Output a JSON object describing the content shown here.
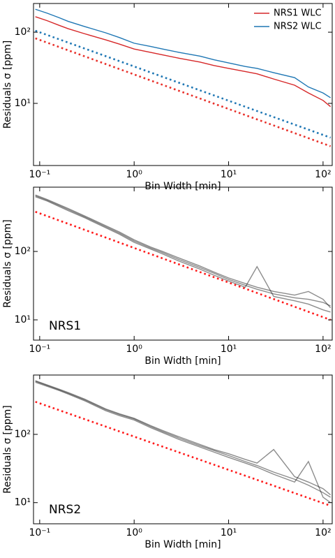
{
  "chart_data": [
    {
      "type": "line",
      "x_label": "Bin Width [min]",
      "y_label": "Residuals σ [ppm]",
      "log_x": true,
      "log_y": true,
      "xlim": [
        0.086,
        125
      ],
      "ylim": [
        1.34,
        253
      ],
      "xticks": [
        {
          "value": 0.1,
          "label": "10⁻¹"
        },
        {
          "value": 1,
          "label": "10⁰"
        },
        {
          "value": 10,
          "label": "10¹"
        },
        {
          "value": 100,
          "label": "10²"
        }
      ],
      "yticks": [
        {
          "value": 10,
          "label": "10¹"
        },
        {
          "value": 100,
          "label": "10²"
        }
      ],
      "legend": "upper-right",
      "x": [
        0.09,
        0.12,
        0.16,
        0.2,
        0.3,
        0.5,
        0.7,
        1,
        1.5,
        2,
        3,
        5,
        7,
        10,
        15,
        20,
        30,
        50,
        70,
        100,
        120
      ],
      "series": [
        {
          "name": "NRS1 WLC",
          "color": "#d62728",
          "values": [
            165,
            145,
            125,
            112,
            95,
            78,
            68,
            58,
            52,
            48,
            43,
            38,
            34,
            31,
            28,
            26,
            22,
            18,
            14,
            11,
            9
          ]
        },
        {
          "name": "NRS2 WLC",
          "color": "#1f77b4",
          "values": [
            210,
            185,
            160,
            142,
            120,
            98,
            84,
            70,
            63,
            58,
            52,
            46,
            41,
            37,
            33,
            31,
            27,
            23,
            17,
            14,
            12
          ]
        },
        {
          "color": "#1f77b4",
          "style": "dotted",
          "x": [
            0.09,
            120
          ],
          "values": [
            105,
            3.3
          ]
        },
        {
          "color": "#e8302a",
          "style": "dotted",
          "x": [
            0.09,
            120
          ],
          "values": [
            82,
            2.5
          ]
        }
      ]
    },
    {
      "type": "line",
      "x_label": "Bin Width [min]",
      "y_label": "Residuals σ [ppm]",
      "panel_label": "NRS1",
      "log_x": true,
      "log_y": true,
      "xlim": [
        0.086,
        125
      ],
      "ylim": [
        5.06,
        870
      ],
      "xticks": [
        {
          "value": 0.1,
          "label": "10⁻¹"
        },
        {
          "value": 1,
          "label": "10⁰"
        },
        {
          "value": 10,
          "label": "10¹"
        },
        {
          "value": 100,
          "label": "10²"
        }
      ],
      "yticks": [
        {
          "value": 10,
          "label": "10¹"
        },
        {
          "value": 100,
          "label": "10²"
        }
      ],
      "x": [
        0.09,
        0.12,
        0.16,
        0.2,
        0.3,
        0.5,
        0.7,
        1,
        1.5,
        2,
        3,
        5,
        7,
        10,
        15,
        20,
        30,
        50,
        70,
        100,
        120
      ],
      "series": [
        {
          "color": "#000000",
          "opacity": 0.45,
          "values": [
            650,
            560,
            470,
            410,
            320,
            230,
            185,
            142,
            112,
            96,
            76,
            58,
            48,
            39,
            32,
            28,
            24,
            21,
            20,
            18,
            16
          ]
        },
        {
          "color": "#000000",
          "opacity": 0.45,
          "values": [
            630,
            545,
            455,
            395,
            310,
            222,
            178,
            136,
            108,
            92,
            72,
            55,
            45,
            37,
            30,
            60,
            22,
            19,
            17,
            14,
            13
          ]
        },
        {
          "color": "#000000",
          "opacity": 0.45,
          "values": [
            670,
            575,
            485,
            425,
            330,
            238,
            192,
            148,
            116,
            100,
            80,
            61,
            50,
            41,
            34,
            30,
            26,
            23,
            26,
            20,
            15
          ]
        },
        {
          "color": "#ff1a1a",
          "style": "dotted",
          "x": [
            0.09,
            120
          ],
          "values": [
            380,
            10
          ]
        }
      ]
    },
    {
      "type": "line",
      "x_label": "Bin Width [min]",
      "y_label": "Residuals σ [ppm]",
      "panel_label": "NRS2",
      "log_x": true,
      "log_y": true,
      "xlim": [
        0.086,
        125
      ],
      "ylim": [
        4.9,
        740
      ],
      "xticks": [
        {
          "value": 0.1,
          "label": "10⁻¹"
        },
        {
          "value": 1,
          "label": "10⁰"
        },
        {
          "value": 10,
          "label": "10¹"
        },
        {
          "value": 100,
          "label": "10²"
        }
      ],
      "yticks": [
        {
          "value": 10,
          "label": "10¹"
        },
        {
          "value": 100,
          "label": "10²"
        }
      ],
      "x": [
        0.09,
        0.12,
        0.16,
        0.2,
        0.3,
        0.5,
        0.7,
        1,
        1.5,
        2,
        3,
        5,
        7,
        10,
        15,
        20,
        30,
        50,
        70,
        100,
        120
      ],
      "series": [
        {
          "color": "#000000",
          "opacity": 0.45,
          "values": [
            600,
            520,
            450,
            400,
            320,
            230,
            195,
            168,
            130,
            110,
            88,
            68,
            58,
            49,
            40,
            35,
            28,
            22,
            18,
            14,
            12
          ]
        },
        {
          "color": "#000000",
          "opacity": 0.45,
          "values": [
            580,
            505,
            440,
            390,
            310,
            222,
            188,
            162,
            125,
            106,
            84,
            65,
            55,
            46,
            38,
            33,
            26,
            20,
            40,
            12,
            10
          ]
        },
        {
          "color": "#000000",
          "opacity": 0.45,
          "values": [
            610,
            530,
            460,
            410,
            328,
            236,
            200,
            172,
            134,
            114,
            92,
            71,
            60,
            52,
            43,
            38,
            60,
            24,
            20,
            16,
            13
          ]
        },
        {
          "color": "#ff1a1a",
          "style": "dotted",
          "x": [
            0.09,
            120
          ],
          "values": [
            300,
            9
          ]
        }
      ]
    }
  ]
}
